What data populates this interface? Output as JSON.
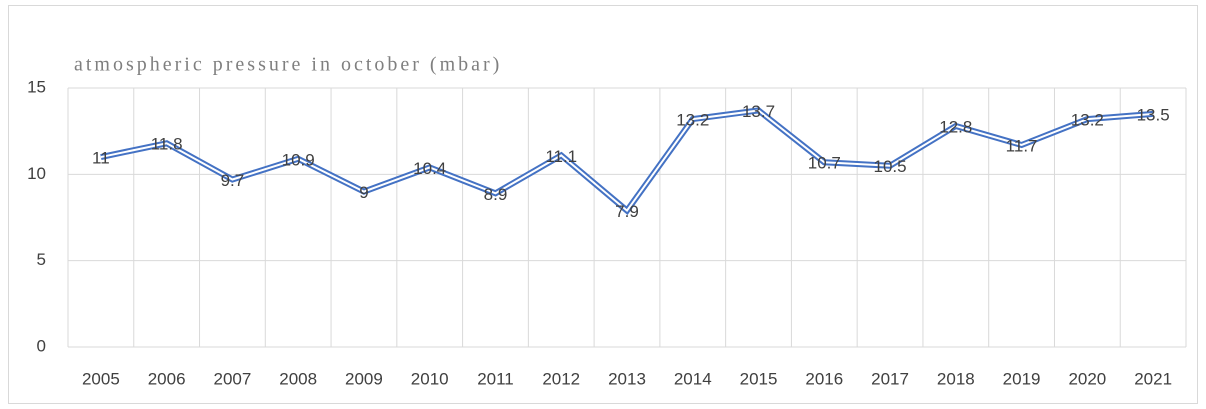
{
  "chart_data": {
    "type": "line",
    "title": "atmospheric pressure in october (mbar)",
    "categories": [
      "2005",
      "2006",
      "2007",
      "2008",
      "2009",
      "2010",
      "2011",
      "2012",
      "2013",
      "2014",
      "2015",
      "2016",
      "2017",
      "2018",
      "2019",
      "2020",
      "2021"
    ],
    "series": [
      {
        "name": "atmospheric pressure",
        "color": "#4472c4",
        "values": [
          11,
          11.8,
          9.7,
          10.9,
          9,
          10.4,
          8.9,
          11.1,
          7.9,
          13.2,
          13.7,
          10.7,
          10.5,
          12.8,
          11.7,
          13.2,
          13.5
        ]
      }
    ],
    "ylim": [
      0,
      15
    ],
    "yticks": [
      0,
      5,
      10,
      15
    ],
    "grid": true
  }
}
